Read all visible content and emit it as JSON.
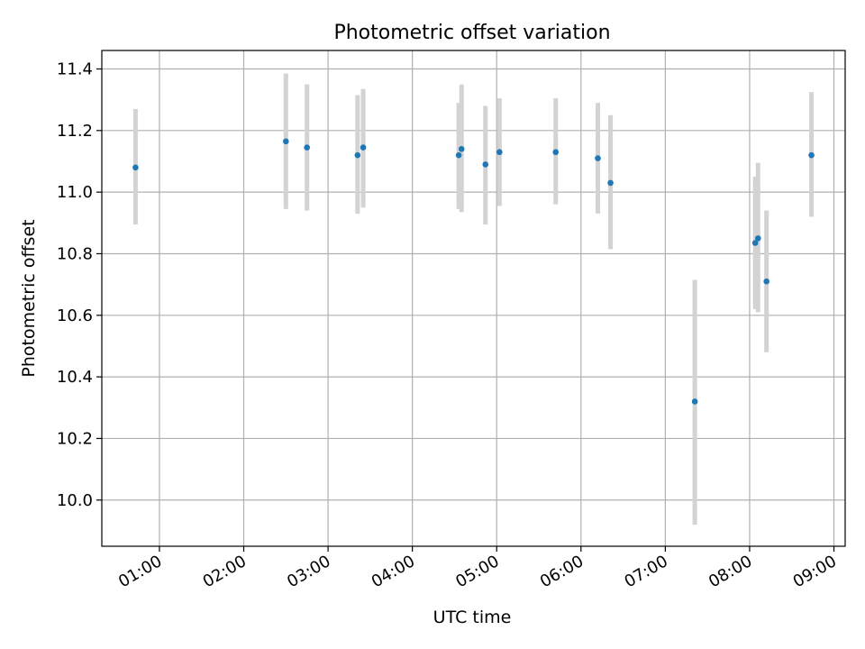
{
  "chart_data": {
    "type": "scatter",
    "title": "Photometric offset variation",
    "xlabel": "UTC time",
    "ylabel": "Photometric offset",
    "x_unit": "time of day (HH:MM, UTC)",
    "xlim": [
      "00:19",
      "09:08"
    ],
    "ylim": [
      9.85,
      11.46
    ],
    "grid": true,
    "x_ticks": [
      "01:00",
      "02:00",
      "03:00",
      "04:00",
      "05:00",
      "06:00",
      "07:00",
      "08:00",
      "09:00"
    ],
    "y_ticks": [
      "10.0",
      "10.2",
      "10.4",
      "10.6",
      "10.8",
      "11.0",
      "11.2",
      "11.4"
    ],
    "marker_color": "#1f77b4",
    "errorbar_color": "#d3d3d3",
    "points": [
      {
        "x": "00:43",
        "y": 11.08,
        "err_low": 10.895,
        "err_high": 11.27
      },
      {
        "x": "02:30",
        "y": 11.165,
        "err_low": 10.945,
        "err_high": 11.385
      },
      {
        "x": "02:45",
        "y": 11.145,
        "err_low": 10.94,
        "err_high": 11.35
      },
      {
        "x": "03:21",
        "y": 11.12,
        "err_low": 10.93,
        "err_high": 11.315
      },
      {
        "x": "03:25",
        "y": 11.145,
        "err_low": 10.95,
        "err_high": 11.335
      },
      {
        "x": "04:33",
        "y": 11.12,
        "err_low": 10.945,
        "err_high": 11.29
      },
      {
        "x": "04:35",
        "y": 11.14,
        "err_low": 10.935,
        "err_high": 11.35
      },
      {
        "x": "04:52",
        "y": 11.09,
        "err_low": 10.895,
        "err_high": 11.28
      },
      {
        "x": "05:02",
        "y": 11.13,
        "err_low": 10.955,
        "err_high": 11.305
      },
      {
        "x": "05:42",
        "y": 11.13,
        "err_low": 10.96,
        "err_high": 11.305
      },
      {
        "x": "06:12",
        "y": 11.11,
        "err_low": 10.93,
        "err_high": 11.29
      },
      {
        "x": "06:21",
        "y": 11.03,
        "err_low": 10.815,
        "err_high": 11.25
      },
      {
        "x": "07:21",
        "y": 10.32,
        "err_low": 9.92,
        "err_high": 10.715
      },
      {
        "x": "08:04",
        "y": 10.835,
        "err_low": 10.62,
        "err_high": 11.05
      },
      {
        "x": "08:06",
        "y": 10.85,
        "err_low": 10.61,
        "err_high": 11.095
      },
      {
        "x": "08:12",
        "y": 10.71,
        "err_low": 10.48,
        "err_high": 10.94
      },
      {
        "x": "08:44",
        "y": 11.12,
        "err_low": 10.92,
        "err_high": 11.325
      }
    ]
  }
}
